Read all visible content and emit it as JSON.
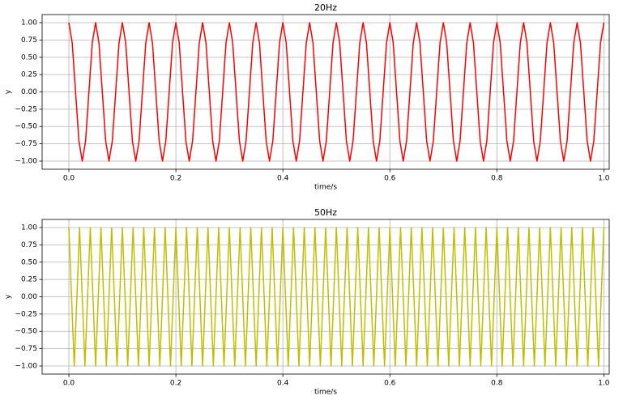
{
  "chart_data": [
    {
      "type": "line",
      "title": "20Hz",
      "xlabel": "time/s",
      "ylabel": "y",
      "color": "#ff0000",
      "xlim": [
        -0.05,
        1.01
      ],
      "ylim": [
        -1.117,
        1.117
      ],
      "grid": true,
      "xticks": [
        {
          "value": 0,
          "label": "0.0"
        },
        {
          "value": 0.2,
          "label": "0.2"
        },
        {
          "value": 0.4,
          "label": "0.4"
        },
        {
          "value": 0.6,
          "label": "0.6"
        },
        {
          "value": 0.8,
          "label": "0.8"
        },
        {
          "value": 1,
          "label": "1.0"
        }
      ],
      "yticks": [
        {
          "value": -1,
          "label": "−1.00"
        },
        {
          "value": -0.75,
          "label": "−0.75"
        },
        {
          "value": -0.5,
          "label": "−0.50"
        },
        {
          "value": -0.25,
          "label": "−0.25"
        },
        {
          "value": 0,
          "label": "0.00"
        },
        {
          "value": 0.25,
          "label": "0.25"
        },
        {
          "value": 0.5,
          "label": "0.50"
        },
        {
          "value": 0.75,
          "label": "0.75"
        },
        {
          "value": 1,
          "label": "1.00"
        }
      ],
      "x": [
        0,
        0.00625,
        0.0125,
        0.01875,
        0.025,
        0.03125,
        0.0375,
        0.04375,
        0.05,
        0.05625,
        0.0625,
        0.06875,
        0.075,
        0.08125,
        0.0875,
        0.09375,
        0.1,
        0.10625,
        0.1125,
        0.11875,
        0.125,
        0.13125,
        0.1375,
        0.14375,
        0.15,
        0.15625,
        0.1625,
        0.16875,
        0.175,
        0.18125,
        0.1875,
        0.19375,
        0.2,
        0.20625,
        0.2125,
        0.21875,
        0.225,
        0.23125,
        0.2375,
        0.24375,
        0.25,
        0.25625,
        0.2625,
        0.26875,
        0.275,
        0.28125,
        0.2875,
        0.29375,
        0.3,
        0.30625,
        0.3125,
        0.31875,
        0.325,
        0.33125,
        0.3375,
        0.34375,
        0.35,
        0.35625,
        0.3625,
        0.36875,
        0.375,
        0.38125,
        0.3875,
        0.39375,
        0.4,
        0.40625,
        0.4125,
        0.41875,
        0.425,
        0.43125,
        0.4375,
        0.44375,
        0.45,
        0.45625,
        0.4625,
        0.46875,
        0.475,
        0.48125,
        0.4875,
        0.49375,
        0.5,
        0.50625,
        0.5125,
        0.51875,
        0.525,
        0.53125,
        0.5375,
        0.54375,
        0.55,
        0.55625,
        0.5625,
        0.56875,
        0.575,
        0.58125,
        0.5875,
        0.59375,
        0.6,
        0.60625,
        0.6125,
        0.61875,
        0.625,
        0.63125,
        0.6375,
        0.64375,
        0.65,
        0.65625,
        0.6625,
        0.66875,
        0.675,
        0.68125,
        0.6875,
        0.69375,
        0.7,
        0.70625,
        0.7125,
        0.71875,
        0.725,
        0.73125,
        0.7375,
        0.74375,
        0.75,
        0.75625,
        0.7625,
        0.76875,
        0.775,
        0.78125,
        0.7875,
        0.79375,
        0.8,
        0.80625,
        0.8125,
        0.81875,
        0.825,
        0.83125,
        0.8375,
        0.84375,
        0.85,
        0.85625,
        0.8625,
        0.86875,
        0.875,
        0.88125,
        0.8875,
        0.89375,
        0.9,
        0.90625,
        0.9125,
        0.91875,
        0.925,
        0.93125,
        0.9375,
        0.94375,
        0.95,
        0.95625,
        0.9625,
        0.96875,
        0.975,
        0.98125,
        0.9875,
        0.99375,
        1
      ],
      "values": [
        1,
        0.7071,
        0,
        -0.7071,
        -1,
        -0.7071,
        0,
        0.7071,
        1,
        0.7071,
        0,
        -0.7071,
        -1,
        -0.7071,
        0,
        0.7071,
        1,
        0.7071,
        0,
        -0.7071,
        -1,
        -0.7071,
        0,
        0.7071,
        1,
        0.7071,
        0,
        -0.7071,
        -1,
        -0.7071,
        0,
        0.7071,
        1,
        0.7071,
        0,
        -0.7071,
        -1,
        -0.7071,
        0,
        0.7071,
        1,
        0.7071,
        0,
        -0.7071,
        -1,
        -0.7071,
        0,
        0.7071,
        1,
        0.7071,
        0,
        -0.7071,
        -1,
        -0.7071,
        0,
        0.7071,
        1,
        0.7071,
        0,
        -0.7071,
        -1,
        -0.7071,
        0,
        0.7071,
        1,
        0.7071,
        0,
        -0.7071,
        -1,
        -0.7071,
        0,
        0.7071,
        1,
        0.7071,
        0,
        -0.7071,
        -1,
        -0.7071,
        0,
        0.7071,
        1,
        0.7071,
        0,
        -0.7071,
        -1,
        -0.7071,
        0,
        0.7071,
        1,
        0.7071,
        0,
        -0.7071,
        -1,
        -0.7071,
        0,
        0.7071,
        1,
        0.7071,
        0,
        -0.7071,
        -1,
        -0.7071,
        0,
        0.7071,
        1,
        0.7071,
        0,
        -0.7071,
        -1,
        -0.7071,
        0,
        0.7071,
        1,
        0.7071,
        0,
        -0.7071,
        -1,
        -0.7071,
        0,
        0.7071,
        1,
        0.7071,
        0,
        -0.7071,
        -1,
        -0.7071,
        0,
        0.7071,
        1,
        0.7071,
        0,
        -0.7071,
        -1,
        -0.7071,
        0,
        0.7071,
        1,
        0.7071,
        0,
        -0.7071,
        -1,
        -0.7071,
        0,
        0.7071,
        1,
        0.7071,
        0,
        -0.7071,
        -1,
        -0.7071,
        0,
        0.7071,
        1,
        0.7071,
        0,
        -0.7071,
        -1,
        -0.7071,
        0,
        0.7071,
        1
      ]
    },
    {
      "type": "line",
      "title": "50Hz",
      "xlabel": "time/s",
      "ylabel": "y",
      "color": "#bfbf00",
      "xlim": [
        -0.05,
        1.01
      ],
      "ylim": [
        -1.117,
        1.117
      ],
      "grid": true,
      "xticks": [
        {
          "value": 0,
          "label": "0.0"
        },
        {
          "value": 0.2,
          "label": "0.2"
        },
        {
          "value": 0.4,
          "label": "0.4"
        },
        {
          "value": 0.6,
          "label": "0.6"
        },
        {
          "value": 0.8,
          "label": "0.8"
        },
        {
          "value": 1,
          "label": "1.0"
        }
      ],
      "yticks": [
        {
          "value": -1,
          "label": "−1.00"
        },
        {
          "value": -0.75,
          "label": "−0.75"
        },
        {
          "value": -0.5,
          "label": "−0.50"
        },
        {
          "value": -0.25,
          "label": "−0.25"
        },
        {
          "value": 0,
          "label": "0.00"
        },
        {
          "value": 0.25,
          "label": "0.25"
        },
        {
          "value": 0.5,
          "label": "0.50"
        },
        {
          "value": 0.75,
          "label": "0.75"
        },
        {
          "value": 1,
          "label": "1.00"
        }
      ],
      "x": [
        0,
        0.005,
        0.01,
        0.015,
        0.02,
        0.025,
        0.03,
        0.035,
        0.04,
        0.045,
        0.05,
        0.055,
        0.06,
        0.065,
        0.07,
        0.075,
        0.08,
        0.085,
        0.09,
        0.095,
        0.1,
        0.105,
        0.11,
        0.115,
        0.12,
        0.125,
        0.13,
        0.135,
        0.14,
        0.145,
        0.15,
        0.155,
        0.16,
        0.165,
        0.17,
        0.175,
        0.18,
        0.185,
        0.19,
        0.195,
        0.2,
        0.205,
        0.21,
        0.215,
        0.22,
        0.225,
        0.23,
        0.235,
        0.24,
        0.245,
        0.25,
        0.255,
        0.26,
        0.265,
        0.27,
        0.275,
        0.28,
        0.285,
        0.29,
        0.295,
        0.3,
        0.305,
        0.31,
        0.315,
        0.32,
        0.325,
        0.33,
        0.335,
        0.34,
        0.345,
        0.35,
        0.355,
        0.36,
        0.365,
        0.37,
        0.375,
        0.38,
        0.385,
        0.39,
        0.395,
        0.4,
        0.405,
        0.41,
        0.415,
        0.42,
        0.425,
        0.43,
        0.435,
        0.44,
        0.445,
        0.45,
        0.455,
        0.46,
        0.465,
        0.47,
        0.475,
        0.48,
        0.485,
        0.49,
        0.495,
        0.5,
        0.505,
        0.51,
        0.515,
        0.52,
        0.525,
        0.53,
        0.535,
        0.54,
        0.545,
        0.55,
        0.555,
        0.56,
        0.565,
        0.57,
        0.575,
        0.58,
        0.585,
        0.59,
        0.595,
        0.6,
        0.605,
        0.61,
        0.615,
        0.62,
        0.625,
        0.63,
        0.635,
        0.64,
        0.645,
        0.65,
        0.655,
        0.66,
        0.665,
        0.67,
        0.675,
        0.68,
        0.685,
        0.69,
        0.695,
        0.7,
        0.705,
        0.71,
        0.715,
        0.72,
        0.725,
        0.73,
        0.735,
        0.74,
        0.745,
        0.75,
        0.755,
        0.76,
        0.765,
        0.77,
        0.775,
        0.78,
        0.785,
        0.79,
        0.795,
        0.8,
        0.805,
        0.81,
        0.815,
        0.82,
        0.825,
        0.83,
        0.835,
        0.84,
        0.845,
        0.85,
        0.855,
        0.86,
        0.865,
        0.87,
        0.875,
        0.88,
        0.885,
        0.89,
        0.895,
        0.9,
        0.905,
        0.91,
        0.915,
        0.92,
        0.925,
        0.93,
        0.935,
        0.94,
        0.945,
        0.95,
        0.955,
        0.96,
        0.965,
        0.97,
        0.975,
        0.98,
        0.985,
        0.99,
        0.995,
        1
      ],
      "values": [
        1,
        0,
        -1,
        0,
        1,
        0,
        -1,
        0,
        1,
        0,
        -1,
        0,
        1,
        0,
        -1,
        0,
        1,
        0,
        -1,
        0,
        1,
        0,
        -1,
        0,
        1,
        0,
        -1,
        0,
        1,
        0,
        -1,
        0,
        1,
        0,
        -1,
        0,
        1,
        0,
        -1,
        0,
        1,
        0,
        -1,
        0,
        1,
        0,
        -1,
        0,
        1,
        0,
        -1,
        0,
        1,
        0,
        -1,
        0,
        1,
        0,
        -1,
        0,
        1,
        0,
        -1,
        0,
        1,
        0,
        -1,
        0,
        1,
        0,
        -1,
        0,
        1,
        0,
        -1,
        0,
        1,
        0,
        -1,
        0,
        1,
        0,
        -1,
        0,
        1,
        0,
        -1,
        0,
        1,
        0,
        -1,
        0,
        1,
        0,
        -1,
        0,
        1,
        0,
        -1,
        0,
        1,
        0,
        -1,
        0,
        1,
        0,
        -1,
        0,
        1,
        0,
        -1,
        0,
        1,
        0,
        -1,
        0,
        1,
        0,
        -1,
        0,
        1,
        0,
        -1,
        0,
        1,
        0,
        -1,
        0,
        1,
        0,
        -1,
        0,
        1,
        0,
        -1,
        0,
        1,
        0,
        -1,
        0,
        1,
        0,
        -1,
        0,
        1,
        0,
        -1,
        0,
        1,
        0,
        -1,
        0,
        1,
        0,
        -1,
        0,
        1,
        0,
        -1,
        0,
        1,
        0,
        -1,
        0,
        1,
        0,
        -1,
        0,
        1,
        0,
        -1,
        0,
        1,
        0,
        -1,
        0,
        1,
        0,
        -1,
        0,
        1,
        0,
        -1,
        0,
        1,
        0,
        -1,
        0,
        1,
        0,
        -1,
        0,
        1,
        0,
        -1,
        0,
        1,
        0,
        -1,
        0,
        1
      ]
    }
  ]
}
